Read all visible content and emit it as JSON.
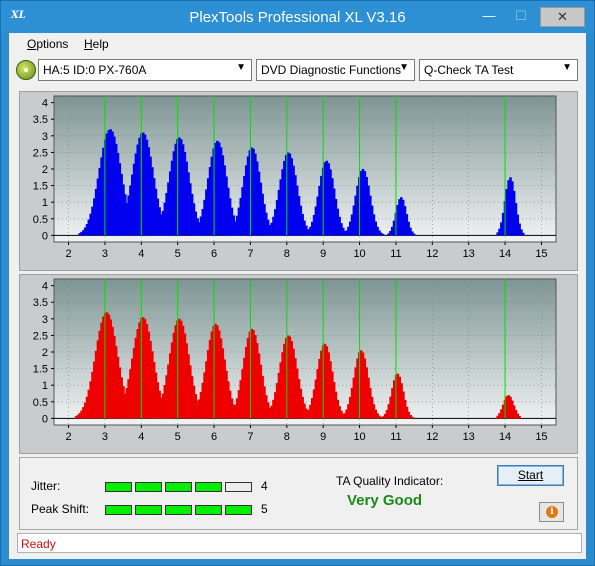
{
  "window": {
    "title": "PlexTools Professional XL V3.16",
    "app_icon": "XL",
    "minimize_glyph": "—",
    "maximize_glyph": "☐",
    "close_glyph": "✕"
  },
  "menu": {
    "options_u": "O",
    "options_rest": "ptions",
    "help_u": "H",
    "help_rest": "elp"
  },
  "toolbar": {
    "drive_icon": "disc-drive-icon",
    "drive": "HA:5 ID:0  PX-760A",
    "function": "DVD Diagnostic Functions",
    "test": "Q-Check TA Test"
  },
  "chart_data": [
    {
      "type": "bar",
      "name": "land",
      "bar_color": "#0000ee",
      "x_ticks": [
        2,
        3,
        4,
        5,
        6,
        7,
        8,
        9,
        10,
        11,
        12,
        13,
        14,
        15
      ],
      "y_ticks": [
        0,
        0.5,
        1,
        1.5,
        2,
        2.5,
        3,
        3.5,
        4
      ],
      "xlim": [
        1.6,
        15.4
      ],
      "ylim": [
        -0.2,
        4.2
      ],
      "green_markers": [
        3,
        4,
        5,
        6,
        7,
        8,
        9,
        10,
        11,
        14
      ],
      "peaks": [
        {
          "center": 3.15,
          "height": 3.2,
          "width": 0.38
        },
        {
          "center": 4.05,
          "height": 3.1,
          "width": 0.36
        },
        {
          "center": 5.05,
          "height": 2.95,
          "width": 0.34
        },
        {
          "center": 6.1,
          "height": 2.85,
          "width": 0.32
        },
        {
          "center": 7.05,
          "height": 2.65,
          "width": 0.3
        },
        {
          "center": 8.05,
          "height": 2.5,
          "width": 0.3
        },
        {
          "center": 9.1,
          "height": 2.25,
          "width": 0.27
        },
        {
          "center": 10.1,
          "height": 2.0,
          "width": 0.25
        },
        {
          "center": 11.15,
          "height": 1.15,
          "width": 0.18
        },
        {
          "center": 14.15,
          "height": 1.75,
          "width": 0.18
        }
      ]
    },
    {
      "type": "bar",
      "name": "pit",
      "bar_color": "#ee0000",
      "x_ticks": [
        2,
        3,
        4,
        5,
        6,
        7,
        8,
        9,
        10,
        11,
        12,
        13,
        14,
        15
      ],
      "y_ticks": [
        0,
        0.5,
        1,
        1.5,
        2,
        2.5,
        3,
        3.5,
        4
      ],
      "xlim": [
        1.6,
        15.4
      ],
      "ylim": [
        -0.2,
        4.2
      ],
      "green_markers": [
        3,
        4,
        5,
        6,
        7,
        8,
        9,
        10,
        11,
        14
      ],
      "peaks": [
        {
          "center": 3.05,
          "height": 3.2,
          "width": 0.38
        },
        {
          "center": 4.05,
          "height": 3.05,
          "width": 0.36
        },
        {
          "center": 5.05,
          "height": 3.0,
          "width": 0.34
        },
        {
          "center": 6.05,
          "height": 2.85,
          "width": 0.32
        },
        {
          "center": 7.05,
          "height": 2.7,
          "width": 0.3
        },
        {
          "center": 8.05,
          "height": 2.5,
          "width": 0.3
        },
        {
          "center": 9.05,
          "height": 2.25,
          "width": 0.27
        },
        {
          "center": 10.05,
          "height": 2.05,
          "width": 0.25
        },
        {
          "center": 11.05,
          "height": 1.35,
          "width": 0.2
        },
        {
          "center": 14.1,
          "height": 0.7,
          "width": 0.18
        }
      ]
    }
  ],
  "indicators": {
    "jitter_label": "Jitter:",
    "jitter_value": "4",
    "jitter_level": 4,
    "peak_label": "Peak Shift:",
    "peak_value": "5",
    "peak_level": 5,
    "segments": 5,
    "quality_label": "TA Quality Indicator:",
    "quality_value": "Very Good",
    "quality_color": "#1a8a1a",
    "start_label": "Start",
    "info_icon": "info-icon",
    "info_glyph": "i"
  },
  "status": {
    "text": "Ready",
    "color": "#d01010"
  }
}
